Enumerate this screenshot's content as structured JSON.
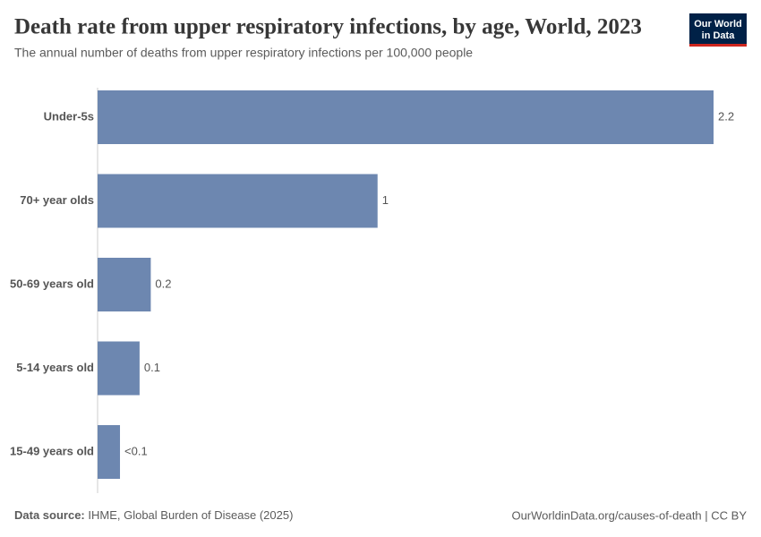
{
  "chart_data": {
    "type": "bar",
    "orientation": "horizontal",
    "title": "Death rate from upper respiratory infections, by age, World, 2023",
    "subtitle": "The annual number of deaths from upper respiratory infections per 100,000 people",
    "categories": [
      "Under-5s",
      "70+ year olds",
      "50-69 years old",
      "5-14 years old",
      "15-49 years old"
    ],
    "values": [
      2.2,
      1,
      0.19,
      0.15,
      0.08
    ],
    "value_labels": [
      "2.2",
      "1",
      "0.2",
      "0.1",
      "<0.1"
    ],
    "color": "#6d87b0"
  },
  "logo": [
    "Our World",
    "in Data"
  ],
  "footer": {
    "source_label": "Data source:",
    "source": "IHME, Global Burden of Disease (2025)",
    "url": "OurWorldinData.org/causes-of-death | CC BY"
  }
}
